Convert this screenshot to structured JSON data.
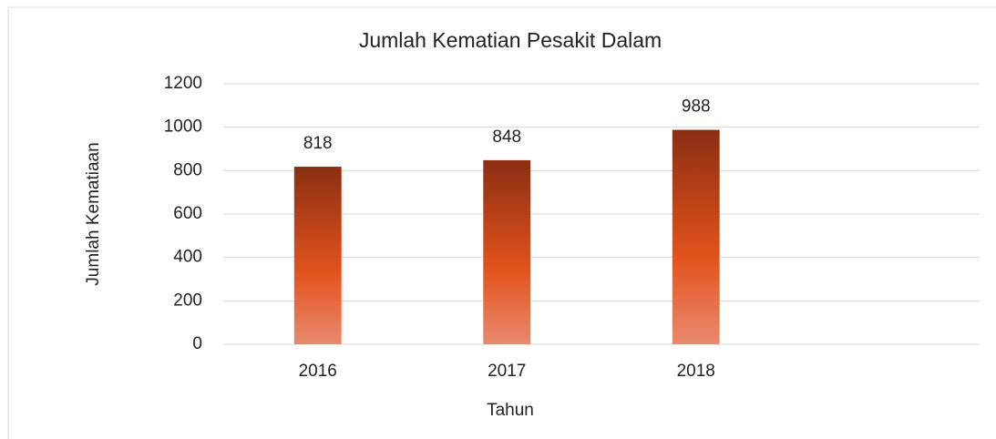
{
  "chart_data": {
    "type": "bar",
    "title": "Jumlah Kematian Pesakit Dalam",
    "x_label": "Tahun",
    "y_label": "Jumlah Kematiaan",
    "categories": [
      "2016",
      "2017",
      "2018",
      null
    ],
    "values": [
      818,
      848,
      988,
      null
    ],
    "gradient": [
      "#8b2e12",
      "#e3531d",
      "#e98a70"
    ],
    "ylim": [
      0,
      1200
    ],
    "yticks": [
      0,
      200,
      400,
      600,
      800,
      1000,
      1200
    ],
    "grid": true,
    "data_labels": true
  }
}
